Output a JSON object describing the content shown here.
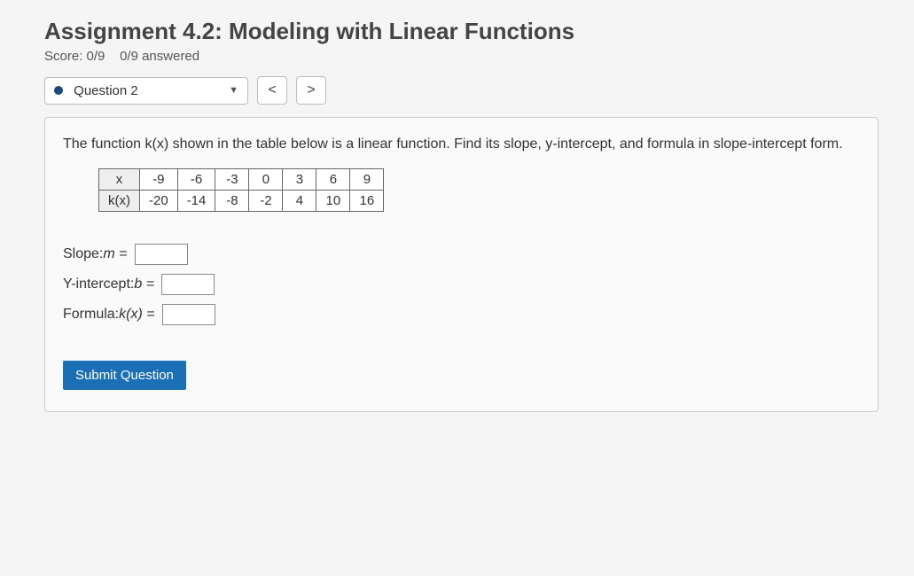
{
  "header": {
    "title": "Assignment 4.2: Modeling with Linear Functions",
    "score_prefix": "Score: ",
    "score_value": "0/9",
    "answered": "0/9 answered"
  },
  "nav": {
    "question_label": "Question 2",
    "prev": "<",
    "next": ">"
  },
  "question": {
    "prompt": "The function k(x) shown in the table below is a linear function. Find its slope, y-intercept, and formula in slope-intercept form.",
    "table": {
      "row_labels": [
        "x",
        "k(x)"
      ],
      "x": [
        "-9",
        "-6",
        "-3",
        "0",
        "3",
        "6",
        "9"
      ],
      "kx": [
        "-20",
        "-14",
        "-8",
        "-2",
        "4",
        "10",
        "16"
      ]
    },
    "answers": {
      "slope_label": "Slope: ",
      "slope_var": "m =",
      "yint_label": "Y-intercept: ",
      "yint_var": "b =",
      "formula_label": "Formula: ",
      "formula_var": "k(x) ="
    },
    "submit": "Submit Question"
  },
  "colors": {
    "accent": "#1a6fb5",
    "dot": "#1a4a7a",
    "border": "#bbbbbb",
    "panel_bg": "#fafafa",
    "page_bg": "#f5f5f5"
  }
}
